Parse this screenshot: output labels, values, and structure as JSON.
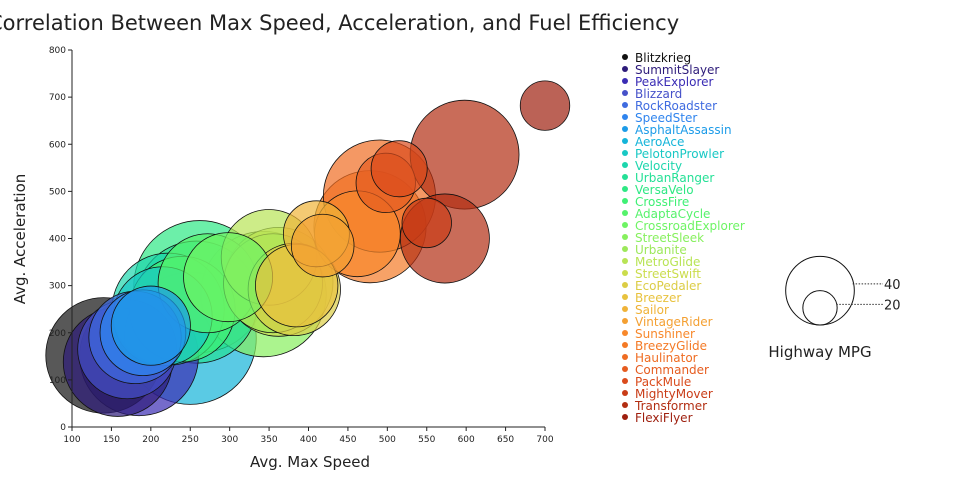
{
  "chart_data": {
    "type": "scatter",
    "title": "Correlation Between Max Speed, Acceleration, and Fuel Efficiency",
    "xlabel": "Avg. Max Speed",
    "ylabel": "Avg. Acceleration",
    "xlim": [
      100,
      700
    ],
    "ylim": [
      0,
      800
    ],
    "xticks": [
      100,
      150,
      200,
      250,
      300,
      350,
      400,
      450,
      500,
      550,
      600,
      650,
      700
    ],
    "yticks": [
      0,
      100,
      200,
      300,
      400,
      500,
      600,
      700,
      800
    ],
    "size_legend": {
      "title": "Highway MPG",
      "entries": [
        {
          "label": "40",
          "value": 40
        },
        {
          "label": "20",
          "value": 20
        }
      ]
    },
    "series": [
      {
        "name": "Blitzkrieg",
        "color": "#111111",
        "points": [
          {
            "x": 140,
            "y": 152,
            "mpg": 35
          }
        ]
      },
      {
        "name": "SummitSlayer",
        "color": "#2d1b7a",
        "points": [
          {
            "x": 158,
            "y": 138,
            "mpg": 33
          }
        ]
      },
      {
        "name": "PeakExplorer",
        "color": "#3a2cb4",
        "points": [
          {
            "x": 185,
            "y": 150,
            "mpg": 36
          }
        ]
      },
      {
        "name": "Blizzard",
        "color": "#4651c9",
        "points": [
          {
            "x": 170,
            "y": 165,
            "mpg": 30
          }
        ]
      },
      {
        "name": "RockRoadster",
        "color": "#3f6be0",
        "points": [
          {
            "x": 180,
            "y": 190,
            "mpg": 28
          }
        ]
      },
      {
        "name": "SpeedSter",
        "color": "#2f84ee",
        "points": [
          {
            "x": 190,
            "y": 200,
            "mpg": 26
          }
        ]
      },
      {
        "name": "AsphaltAssassin",
        "color": "#1c9be8",
        "points": [
          {
            "x": 200,
            "y": 215,
            "mpg": 24
          }
        ]
      },
      {
        "name": "AeroAce",
        "color": "#14b4d9",
        "points": [
          {
            "x": 250,
            "y": 188,
            "mpg": 40
          }
        ]
      },
      {
        "name": "PelotonProwler",
        "color": "#18c8c4",
        "points": [
          {
            "x": 215,
            "y": 235,
            "mpg": 30
          }
        ]
      },
      {
        "name": "Velocity",
        "color": "#1cd6ad",
        "points": [
          {
            "x": 222,
            "y": 250,
            "mpg": 34
          }
        ]
      },
      {
        "name": "UrbanRanger",
        "color": "#24e096",
        "points": [
          {
            "x": 258,
            "y": 265,
            "mpg": 37
          }
        ]
      },
      {
        "name": "VersaVelo",
        "color": "#2ee884",
        "points": [
          {
            "x": 262,
            "y": 298,
            "mpg": 40
          }
        ]
      },
      {
        "name": "CrossFire",
        "color": "#3ff075",
        "points": [
          {
            "x": 240,
            "y": 250,
            "mpg": 32
          }
        ]
      },
      {
        "name": "AdaptaCycle",
        "color": "#55f26b",
        "points": [
          {
            "x": 272,
            "y": 305,
            "mpg": 30
          }
        ]
      },
      {
        "name": "CrossroadExplorer",
        "color": "#6ef464",
        "points": [
          {
            "x": 298,
            "y": 318,
            "mpg": 27
          }
        ]
      },
      {
        "name": "StreetSleek",
        "color": "#87f05e",
        "points": [
          {
            "x": 343,
            "y": 282,
            "mpg": 38
          }
        ]
      },
      {
        "name": "Urbanite",
        "color": "#9ce85a",
        "points": [
          {
            "x": 355,
            "y": 305,
            "mpg": 30
          }
        ]
      },
      {
        "name": "MetroGlide",
        "color": "#b8e455",
        "points": [
          {
            "x": 350,
            "y": 360,
            "mpg": 29
          }
        ]
      },
      {
        "name": "StreetSwift",
        "color": "#cbdd4c",
        "points": [
          {
            "x": 362,
            "y": 308,
            "mpg": 33
          }
        ]
      },
      {
        "name": "EcoPedaler",
        "color": "#dccd45",
        "points": [
          {
            "x": 382,
            "y": 292,
            "mpg": 28
          }
        ]
      },
      {
        "name": "Breezer",
        "color": "#e8c23e",
        "points": [
          {
            "x": 385,
            "y": 300,
            "mpg": 25
          }
        ]
      },
      {
        "name": "Sailor",
        "color": "#f0b338",
        "points": [
          {
            "x": 410,
            "y": 410,
            "mpg": 20
          }
        ]
      },
      {
        "name": "VintageRider",
        "color": "#f4a032",
        "points": [
          {
            "x": 418,
            "y": 385,
            "mpg": 19
          }
        ]
      },
      {
        "name": "Sunshiner",
        "color": "#f8882b",
        "points": [
          {
            "x": 462,
            "y": 410,
            "mpg": 26
          }
        ]
      },
      {
        "name": "BreezyGlide",
        "color": "#f47a26",
        "points": [
          {
            "x": 478,
            "y": 425,
            "mpg": 34
          }
        ]
      },
      {
        "name": "Haulinator",
        "color": "#ef6c22",
        "points": [
          {
            "x": 490,
            "y": 490,
            "mpg": 34
          }
        ]
      },
      {
        "name": "Commander",
        "color": "#e65c1f",
        "points": [
          {
            "x": 498,
            "y": 518,
            "mpg": 18
          }
        ]
      },
      {
        "name": "PackMule",
        "color": "#da4b1c",
        "points": [
          {
            "x": 515,
            "y": 548,
            "mpg": 17
          }
        ]
      },
      {
        "name": "MightyMover",
        "color": "#c93c17",
        "points": [
          {
            "x": 550,
            "y": 433,
            "mpg": 15
          }
        ]
      },
      {
        "name": "Transformer",
        "color": "#b22e12",
        "points": [
          {
            "x": 598,
            "y": 578,
            "mpg": 33
          },
          {
            "x": 573,
            "y": 400,
            "mpg": 27
          }
        ]
      },
      {
        "name": "FlexiFlyer",
        "color": "#9e1f0e",
        "points": [
          {
            "x": 700,
            "y": 682,
            "mpg": 15
          }
        ]
      }
    ]
  }
}
